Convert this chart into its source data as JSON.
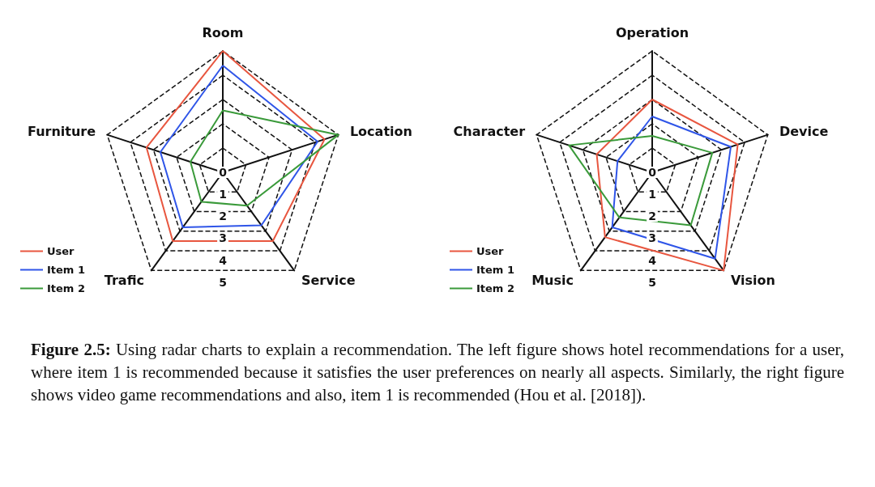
{
  "chart_data": [
    {
      "type": "radar",
      "categories": [
        "Room",
        "Location",
        "Service",
        "Trafic",
        "Furniture"
      ],
      "ylim": [
        0,
        5
      ],
      "yticks": [
        0,
        1,
        2,
        3,
        4,
        5
      ],
      "legend": "bottom left",
      "line_style": "solid",
      "marker": "none",
      "annotations": [
        "Figure 2.5: Using radar charts to explain a recommendation. The left figure shows hotel recommendations for a user, where item 1 is recommended because it satisfies the user preferences on nearly all aspects. Similarly, the right figure shows video game recommendations and also, item 1 is recommended (Hou et al. [2018])."
      ],
      "series": [
        {
          "name": "User",
          "color": "#e8563f",
          "values": [
            5,
            4.4,
            3.5,
            3.5,
            3.3
          ]
        },
        {
          "name": "Item 1",
          "color": "#2f55e8",
          "values": [
            4.4,
            4.1,
            2.7,
            2.8,
            2.7
          ]
        },
        {
          "name": "Item 2",
          "color": "#3a9a3a",
          "values": [
            2.55,
            5,
            1.7,
            1.5,
            1.4
          ]
        }
      ]
    },
    {
      "type": "radar",
      "categories": [
        "Operation",
        "Device",
        "Vision",
        "Music",
        "Character"
      ],
      "ylim": [
        0,
        5
      ],
      "yticks": [
        0,
        1,
        2,
        3,
        4,
        5
      ],
      "legend": "bottom left",
      "line_style": "solid",
      "marker": "none",
      "series": [
        {
          "name": "User",
          "color": "#e8563f",
          "values": [
            3,
            3.7,
            5,
            3.3,
            2.4
          ]
        },
        {
          "name": "Item 1",
          "color": "#2f55e8",
          "values": [
            2.3,
            3.4,
            4.4,
            2.8,
            1.5
          ]
        },
        {
          "name": "Item 2",
          "color": "#3a9a3a",
          "values": [
            1.5,
            2.6,
            2.7,
            2.3,
            3.6
          ]
        }
      ]
    }
  ]
}
